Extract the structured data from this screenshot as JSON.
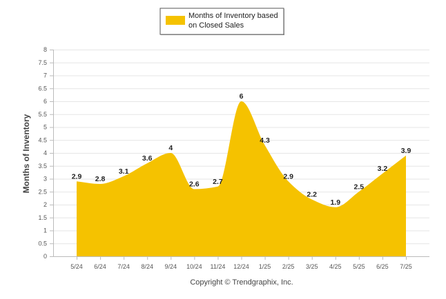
{
  "chart_data": {
    "type": "area",
    "legend": {
      "position": "top-center",
      "lines": [
        "Months of Inventory based",
        "on Closed Sales"
      ]
    },
    "ylabel": "Months of Inventory",
    "xlabel": "",
    "ylim": [
      0,
      8
    ],
    "yticks": [
      "0",
      "0.5",
      "1",
      "1.5",
      "2",
      "2.5",
      "3",
      "3.5",
      "4",
      "4.5",
      "5",
      "5.5",
      "6",
      "6.5",
      "7",
      "7.5",
      "8"
    ],
    "categories": [
      "5/24",
      "6/24",
      "7/24",
      "8/24",
      "9/24",
      "10/24",
      "11/24",
      "12/24",
      "1/25",
      "2/25",
      "3/25",
      "4/25",
      "5/25",
      "6/25",
      "7/25"
    ],
    "series": [
      {
        "name": "Months of Inventory based on Closed Sales",
        "values": [
          2.9,
          2.8,
          3.1,
          3.6,
          4,
          2.6,
          2.7,
          6,
          4.3,
          2.9,
          2.2,
          1.9,
          2.5,
          3.2,
          3.9
        ],
        "labels": [
          "2.9",
          "2.8",
          "3.1",
          "3.6",
          "4",
          "2.6",
          "2.7",
          "6",
          "4.3",
          "2.9",
          "2.2",
          "1.9",
          "2.5",
          "3.2",
          "3.9"
        ]
      }
    ],
    "grid": true,
    "colors": {
      "fill": "#F5C200",
      "grid": "#E6E6E6",
      "axis": "#BBBBBB"
    }
  },
  "footer": {
    "credit": "Copyright © Trendgraphix, Inc."
  }
}
